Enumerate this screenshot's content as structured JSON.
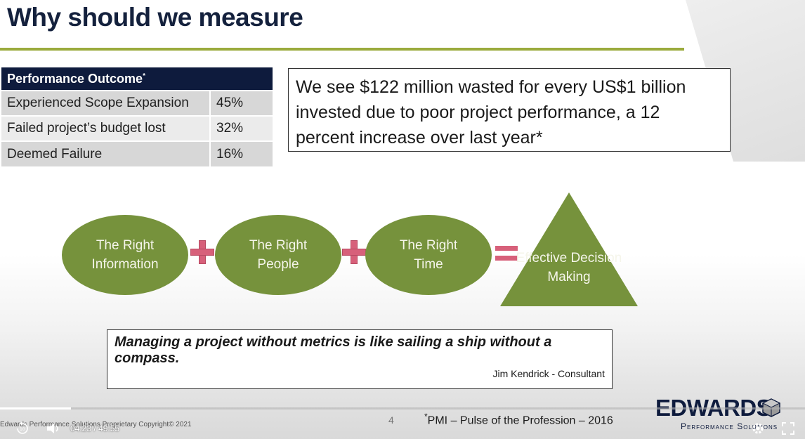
{
  "slide": {
    "title": "Why should we measure",
    "table": {
      "header": "Performance Outcome",
      "header_mark": "*",
      "rows": [
        {
          "label": "Experienced Scope Expansion",
          "value": "45%"
        },
        {
          "label": "Failed project’s budget lost",
          "value": "32%"
        },
        {
          "label": "Deemed Failure",
          "value": "16%"
        }
      ]
    },
    "callout": "We see $122 million wasted for every US$1 billion invested due to poor project performance, a 12 percent increase over last year*",
    "equation": {
      "oval1": "The Right Information",
      "oval2": "The Right People",
      "oval3": "The Right Time",
      "result": "Effective Decision Making"
    },
    "quote": "Managing a project without metrics is like sailing a ship without a compass.",
    "quote_author": "Jim Kendrick - Consultant",
    "footer_copyright": "Edwards Performance Solutions Proprietary Copyright© 2021",
    "page_number": "4",
    "source_mark": "*",
    "source": "PMI – Pulse of the Profession – 2016",
    "logo_word": "EDWARDS",
    "logo_sub": "Performance Solutions"
  },
  "player": {
    "current_time": "04:23",
    "separator": "/",
    "duration": "49:55",
    "progress_fraction": 0.088,
    "rewind_label": "10",
    "icons": [
      "rewind-10-icon",
      "volume-icon",
      "settings-icon",
      "fullscreen-icon"
    ]
  },
  "colors": {
    "navy": "#0e1b3d",
    "olive_rule": "#9bab3d",
    "shape_green": "#76923c",
    "operator_pink": "#d7607a"
  }
}
